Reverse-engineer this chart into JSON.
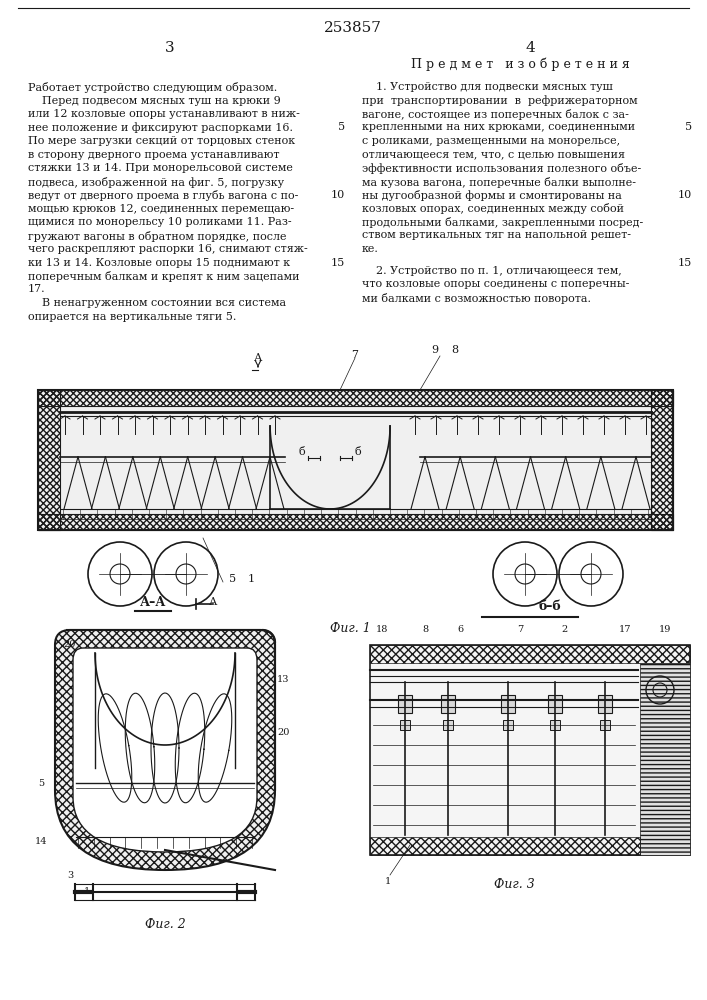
{
  "patent_number": "253857",
  "page_left": "3",
  "page_right": "4",
  "right_column_title": "П р е д м е т   и з о б р е т е н и я",
  "left_text": [
    "Работает устройство следующим образом.",
    "    Перед подвесом мясных туш на крюки 9",
    "или 12 козловые опоры устанавливают в ниж-",
    "нее положение и фиксируют распорками 16.",
    "По мере загрузки секций от торцовых стенок",
    "в сторону дверного проема устанавливают",
    "стяжки 13 и 14. При монорельсовой системе",
    "подвеса, изображенной на фиг. 5, погрузку",
    "ведут от дверного проема в глубь вагона с по-",
    "мощью крюков 12, соединенных перемещаю-",
    "щимися по монорельсу 10 роликами 11. Раз-",
    "гружают вагоны в обратном порядке, после",
    "чего раскрепляют распорки 16, снимают стяж-",
    "ки 13 и 14. Козловые опоры 15 поднимают к",
    "поперечным балкам и крепят к ним зацепами",
    "17.",
    "    В ненагруженном состоянии вся система",
    "опирается на вертикальные тяги 5."
  ],
  "right_text_p1": [
    "    1. Устройство для подвески мясных туш",
    "при  транспортировании  в  рефрижераторном",
    "вагоне, состоящее из поперечных балок с за-",
    "крепленными на них крюками, соединенными",
    "с роликами, размещенными на монорельсе,",
    "отличающееся тем, что, с целью повышения",
    "эффективности использования полезного объе-",
    "ма кузова вагона, поперечные балки выполне-",
    "ны дугообразной формы и смонтированы на",
    "козловых опорах, соединенных между собой",
    "продольными балками, закрепленными посред-",
    "ством вертикальных тяг на напольной решет-",
    "ке."
  ],
  "right_text_p2": [
    "    2. Устройство по п. 1, отличающееся тем,",
    "что козловые опоры соединены с поперечны-",
    "ми балками с возможностью поворота."
  ],
  "fig1_label": "Фиг. 1",
  "fig2_label": "Фиг. 2",
  "fig3_label": "Фиг. 3",
  "bg_color": "#ffffff",
  "text_color": "#1a1a1a",
  "line_color": "#1a1a1a"
}
